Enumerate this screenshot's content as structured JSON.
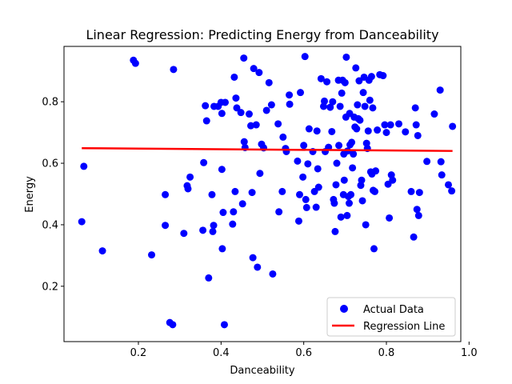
{
  "chart_data": {
    "type": "scatter",
    "title": "Linear Regression: Predicting Energy from Danceability",
    "xlabel": "Danceability",
    "ylabel": "Energy",
    "xlim": [
      0.02,
      0.98
    ],
    "ylim": [
      0.02,
      0.98
    ],
    "xticks": [
      0.2,
      0.4,
      0.6,
      0.8,
      1.0
    ],
    "xtick_labels": [
      "0.2",
      "0.4",
      "0.6",
      "0.8",
      "1.0"
    ],
    "yticks": [
      0.2,
      0.4,
      0.6,
      0.8
    ],
    "ytick_labels": [
      "0.2",
      "0.4",
      "0.6",
      "0.8"
    ],
    "grid": false,
    "legend_position": "lower-right",
    "series": [
      {
        "name": "Actual Data",
        "kind": "scatter",
        "color": "#0000ff",
        "points": [
          [
            0.063,
            0.41
          ],
          [
            0.068,
            0.59
          ],
          [
            0.113,
            0.315
          ],
          [
            0.188,
            0.935
          ],
          [
            0.193,
            0.925
          ],
          [
            0.232,
            0.302
          ],
          [
            0.265,
            0.498
          ],
          [
            0.265,
            0.398
          ],
          [
            0.276,
            0.082
          ],
          [
            0.283,
            0.075
          ],
          [
            0.285,
            0.905
          ],
          [
            0.31,
            0.372
          ],
          [
            0.318,
            0.527
          ],
          [
            0.32,
            0.517
          ],
          [
            0.325,
            0.555
          ],
          [
            0.356,
            0.382
          ],
          [
            0.358,
            0.602
          ],
          [
            0.362,
            0.787
          ],
          [
            0.365,
            0.738
          ],
          [
            0.37,
            0.227
          ],
          [
            0.378,
            0.498
          ],
          [
            0.38,
            0.378
          ],
          [
            0.382,
            0.398
          ],
          [
            0.383,
            0.785
          ],
          [
            0.393,
            0.785
          ],
          [
            0.4,
            0.798
          ],
          [
            0.402,
            0.762
          ],
          [
            0.402,
            0.58
          ],
          [
            0.403,
            0.322
          ],
          [
            0.405,
            0.44
          ],
          [
            0.408,
            0.075
          ],
          [
            0.41,
            0.798
          ],
          [
            0.428,
            0.402
          ],
          [
            0.43,
            0.442
          ],
          [
            0.432,
            0.88
          ],
          [
            0.434,
            0.508
          ],
          [
            0.436,
            0.812
          ],
          [
            0.438,
            0.78
          ],
          [
            0.448,
            0.765
          ],
          [
            0.452,
            0.468
          ],
          [
            0.455,
            0.942
          ],
          [
            0.456,
            0.67
          ],
          [
            0.458,
            0.651
          ],
          [
            0.468,
            0.76
          ],
          [
            0.472,
            0.722
          ],
          [
            0.475,
            0.505
          ],
          [
            0.477,
            0.293
          ],
          [
            0.479,
            0.908
          ],
          [
            0.485,
            0.725
          ],
          [
            0.488,
            0.262
          ],
          [
            0.492,
            0.895
          ],
          [
            0.494,
            0.567
          ],
          [
            0.498,
            0.662
          ],
          [
            0.503,
            0.65
          ],
          [
            0.51,
            0.772
          ],
          [
            0.516,
            0.862
          ],
          [
            0.522,
            0.79
          ],
          [
            0.525,
            0.24
          ],
          [
            0.538,
            0.728
          ],
          [
            0.54,
            0.442
          ],
          [
            0.548,
            0.508
          ],
          [
            0.55,
            0.685
          ],
          [
            0.556,
            0.648
          ],
          [
            0.558,
            0.638
          ],
          [
            0.565,
            0.822
          ],
          [
            0.566,
            0.792
          ],
          [
            0.585,
            0.607
          ],
          [
            0.588,
            0.412
          ],
          [
            0.59,
            0.498
          ],
          [
            0.592,
            0.83
          ],
          [
            0.598,
            0.555
          ],
          [
            0.6,
            0.658
          ],
          [
            0.603,
            0.947
          ],
          [
            0.605,
            0.482
          ],
          [
            0.607,
            0.456
          ],
          [
            0.61,
            0.598
          ],
          [
            0.613,
            0.712
          ],
          [
            0.622,
            0.638
          ],
          [
            0.626,
            0.508
          ],
          [
            0.63,
            0.457
          ],
          [
            0.632,
            0.705
          ],
          [
            0.634,
            0.582
          ],
          [
            0.636,
            0.522
          ],
          [
            0.642,
            0.875
          ],
          [
            0.648,
            0.785
          ],
          [
            0.65,
            0.802
          ],
          [
            0.652,
            0.638
          ],
          [
            0.656,
            0.865
          ],
          [
            0.66,
            0.652
          ],
          [
            0.664,
            0.782
          ],
          [
            0.668,
            0.703
          ],
          [
            0.67,
            0.8
          ],
          [
            0.672,
            0.482
          ],
          [
            0.674,
            0.47
          ],
          [
            0.676,
            0.378
          ],
          [
            0.678,
            0.53
          ],
          [
            0.68,
            0.6
          ],
          [
            0.684,
            0.87
          ],
          [
            0.685,
            0.658
          ],
          [
            0.688,
            0.785
          ],
          [
            0.69,
            0.425
          ],
          [
            0.692,
            0.828
          ],
          [
            0.694,
            0.87
          ],
          [
            0.696,
            0.498
          ],
          [
            0.697,
            0.63
          ],
          [
            0.698,
            0.545
          ],
          [
            0.7,
            0.862
          ],
          [
            0.702,
            0.75
          ],
          [
            0.703,
            0.945
          ],
          [
            0.705,
            0.43
          ],
          [
            0.706,
            0.64
          ],
          [
            0.708,
            0.492
          ],
          [
            0.71,
            0.47
          ],
          [
            0.711,
            0.762
          ],
          [
            0.712,
            0.66
          ],
          [
            0.714,
            0.498
          ],
          [
            0.716,
            0.668
          ],
          [
            0.718,
            0.585
          ],
          [
            0.72,
            0.63
          ],
          [
            0.722,
            0.75
          ],
          [
            0.724,
            0.718
          ],
          [
            0.726,
            0.91
          ],
          [
            0.728,
            0.712
          ],
          [
            0.73,
            0.79
          ],
          [
            0.732,
            0.745
          ],
          [
            0.734,
            0.868
          ],
          [
            0.736,
            0.74
          ],
          [
            0.738,
            0.528
          ],
          [
            0.74,
            0.545
          ],
          [
            0.742,
            0.478
          ],
          [
            0.744,
            0.83
          ],
          [
            0.746,
            0.88
          ],
          [
            0.748,
            0.785
          ],
          [
            0.75,
            0.4
          ],
          [
            0.752,
            0.665
          ],
          [
            0.754,
            0.648
          ],
          [
            0.756,
            0.705
          ],
          [
            0.758,
            0.87
          ],
          [
            0.76,
            0.805
          ],
          [
            0.762,
            0.572
          ],
          [
            0.764,
            0.882
          ],
          [
            0.765,
            0.565
          ],
          [
            0.767,
            0.78
          ],
          [
            0.768,
            0.512
          ],
          [
            0.77,
            0.322
          ],
          [
            0.772,
            0.508
          ],
          [
            0.774,
            0.575
          ],
          [
            0.778,
            0.708
          ],
          [
            0.784,
            0.888
          ],
          [
            0.792,
            0.885
          ],
          [
            0.796,
            0.725
          ],
          [
            0.8,
            0.7
          ],
          [
            0.804,
            0.532
          ],
          [
            0.807,
            0.422
          ],
          [
            0.81,
            0.725
          ],
          [
            0.812,
            0.562
          ],
          [
            0.815,
            0.545
          ],
          [
            0.83,
            0.728
          ],
          [
            0.846,
            0.702
          ],
          [
            0.86,
            0.508
          ],
          [
            0.866,
            0.36
          ],
          [
            0.87,
            0.78
          ],
          [
            0.872,
            0.725
          ],
          [
            0.874,
            0.45
          ],
          [
            0.876,
            0.69
          ],
          [
            0.878,
            0.43
          ],
          [
            0.88,
            0.505
          ],
          [
            0.898,
            0.606
          ],
          [
            0.916,
            0.76
          ],
          [
            0.93,
            0.838
          ],
          [
            0.932,
            0.605
          ],
          [
            0.934,
            0.562
          ],
          [
            0.95,
            0.53
          ],
          [
            0.958,
            0.51
          ],
          [
            0.96,
            0.72
          ]
        ]
      },
      {
        "name": "Regression Line",
        "kind": "line",
        "color": "#ff0000",
        "points": [
          [
            0.063,
            0.649
          ],
          [
            0.96,
            0.64
          ]
        ]
      }
    ]
  }
}
